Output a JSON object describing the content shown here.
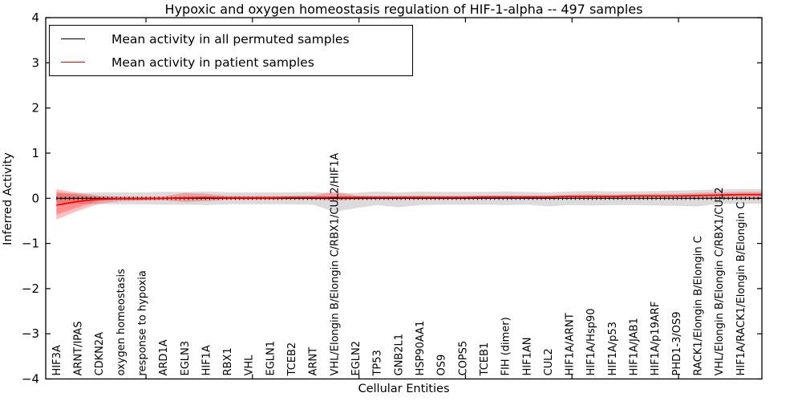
{
  "figure": {
    "title": "Hypoxic and oxygen homeostasis regulation of HIF-1-alpha -- 497 samples",
    "xlabel": "Cellular Entities",
    "ylabel": "Inferred Activity"
  },
  "chart_data": {
    "type": "line",
    "title": "Hypoxic and oxygen homeostasis regulation of HIF-1-alpha -- 497 samples",
    "xlabel": "Cellular Entities",
    "ylabel": "Inferred Activity",
    "ylim": [
      -4,
      4
    ],
    "yticks": [
      4,
      3,
      2,
      1,
      0,
      -1,
      -2,
      -3,
      -4
    ],
    "ytick_labels": [
      "4",
      "3",
      "2",
      "1",
      "0",
      "−1",
      "−2",
      "−3",
      "−4"
    ],
    "grid": false,
    "legend_position": "upper left",
    "categories": [
      "HIF3A",
      "ARNT/IPAS",
      "CDKN2A",
      "oxygen homeostasis",
      "response to hypoxia",
      "ARD1A",
      "EGLN3",
      "HIF1A",
      "RBX1",
      "VHL",
      "EGLN1",
      "TCEB2",
      "ARNT",
      "VHL/Elongin B/Elongin C/RBX1/CUL2/HIF1A",
      "EGLN2",
      "TP53",
      "GNB2L1",
      "HSP90AA1",
      "OS9",
      "COPS5",
      "TCEB1",
      "FIH (dimer)",
      "HIF1AN",
      "CUL2",
      "HIF1A/ARNT",
      "HIF1A/Hsp90",
      "HIF1A/p53",
      "HIF1A/JAB1",
      "HIF1A/p19ARF",
      "PHD1-3/OS9",
      "RACK1/Elongin B/Elongin C",
      "VHL/Elongin B/Elongin C/RBX1/CUL2",
      "HIF1A/RACK1/Elongin B/Elongin C"
    ],
    "series": [
      {
        "name": "Mean activity in all permuted samples",
        "color": "#000000",
        "style": "solid-with-tick-markers",
        "values": [
          0,
          0,
          0,
          0,
          0,
          0,
          0,
          0,
          0,
          0,
          0,
          0,
          0,
          0,
          0,
          0,
          0,
          0,
          0,
          0,
          0,
          0,
          0,
          0,
          0,
          0,
          0,
          0,
          0,
          0,
          0,
          0,
          0
        ]
      },
      {
        "name": "Mean activity in patient samples",
        "color": "#ff0000",
        "style": "solid",
        "values": [
          -0.15,
          -0.07,
          -0.02,
          -0.01,
          -0.01,
          0.0,
          0.01,
          0.02,
          0.01,
          0.01,
          0.01,
          0.02,
          0.02,
          0.02,
          0.02,
          0.02,
          0.02,
          0.02,
          0.02,
          0.02,
          0.03,
          0.03,
          0.03,
          0.03,
          0.04,
          0.04,
          0.04,
          0.05,
          0.05,
          0.05,
          0.06,
          0.07,
          0.08
        ]
      }
    ],
    "bands": [
      {
        "name": "permuted-samples-range",
        "color": "#7f7f7f",
        "opacity": 0.28,
        "upper": [
          0.1,
          0.12,
          0.13,
          0.13,
          0.13,
          0.14,
          0.14,
          0.15,
          0.13,
          0.13,
          0.13,
          0.13,
          0.14,
          0.11,
          0.12,
          0.15,
          0.13,
          0.15,
          0.14,
          0.14,
          0.14,
          0.15,
          0.14,
          0.13,
          0.15,
          0.16,
          0.15,
          0.15,
          0.16,
          0.17,
          0.18,
          0.2,
          0.2
        ],
        "lower": [
          -0.1,
          -0.12,
          -0.13,
          -0.13,
          -0.13,
          -0.14,
          -0.14,
          -0.15,
          -0.13,
          -0.13,
          -0.13,
          -0.13,
          -0.14,
          -0.3,
          -0.22,
          -0.15,
          -0.2,
          -0.15,
          -0.14,
          -0.14,
          -0.14,
          -0.15,
          -0.14,
          -0.18,
          -0.15,
          -0.16,
          -0.15,
          -0.15,
          -0.16,
          -0.17,
          -0.18,
          -0.12,
          -0.12
        ]
      },
      {
        "name": "patient-samples-range",
        "color": "#ff0000",
        "opacity": 0.25,
        "upper": [
          0.2,
          0.12,
          0.06,
          0.04,
          0.04,
          0.04,
          0.12,
          0.1,
          0.05,
          0.05,
          0.05,
          0.05,
          0.06,
          0.15,
          0.06,
          0.05,
          0.05,
          0.06,
          0.05,
          0.05,
          0.06,
          0.06,
          0.06,
          0.06,
          0.08,
          0.09,
          0.08,
          0.09,
          0.1,
          0.1,
          0.12,
          0.13,
          0.14
        ],
        "lower": [
          -0.47,
          -0.28,
          -0.12,
          -0.06,
          -0.05,
          -0.04,
          -0.08,
          -0.06,
          -0.03,
          -0.03,
          -0.03,
          -0.02,
          -0.02,
          -0.05,
          -0.03,
          -0.02,
          -0.02,
          -0.02,
          -0.02,
          -0.02,
          -0.01,
          -0.01,
          -0.01,
          -0.01,
          0.0,
          0.0,
          0.0,
          0.01,
          0.01,
          0.0,
          0.0,
          0.01,
          -0.01
        ]
      },
      {
        "name": "patient-samples-inner-range",
        "color": "#ff0000",
        "opacity": 0.25,
        "upper": [
          0.14,
          0.08,
          0.03,
          -0.01,
          -0.01,
          0.0,
          0.01,
          0.02,
          0.01,
          0.01,
          0.01,
          0.02,
          0.02,
          0.02,
          0.02,
          0.02,
          0.02,
          0.02,
          0.02,
          0.02,
          0.03,
          0.03,
          0.03,
          0.03,
          0.04,
          0.04,
          0.04,
          0.05,
          0.05,
          0.05,
          0.06,
          0.07,
          0.08
        ],
        "lower": [
          -0.36,
          -0.2,
          -0.06,
          -0.01,
          -0.01,
          0.0,
          0.01,
          0.02,
          0.01,
          0.01,
          0.01,
          0.02,
          0.02,
          0.02,
          0.02,
          0.02,
          0.02,
          0.02,
          0.02,
          0.02,
          0.03,
          0.03,
          0.03,
          0.03,
          0.04,
          0.04,
          0.04,
          0.05,
          0.05,
          0.05,
          0.06,
          0.07,
          0.08
        ]
      }
    ]
  }
}
